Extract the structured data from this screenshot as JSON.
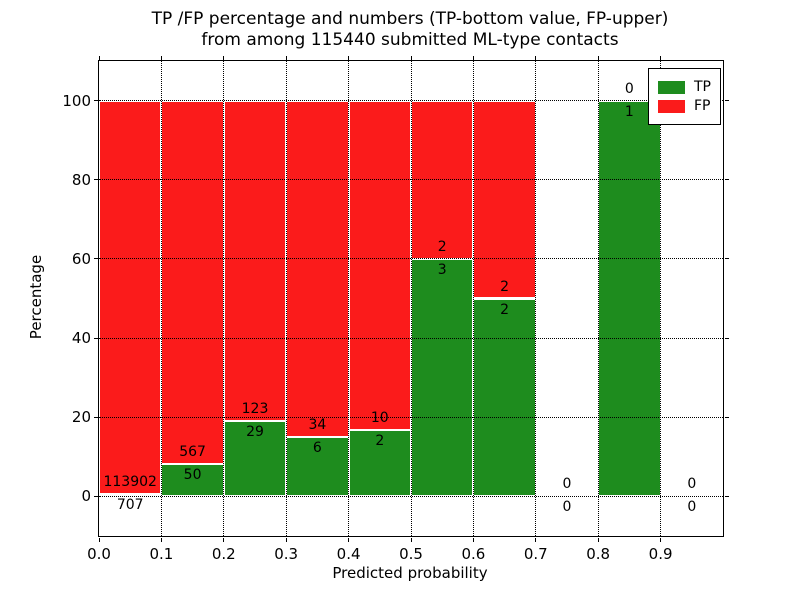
{
  "chart_data": {
    "type": "bar",
    "stacked": true,
    "title_line1": "TP /FP percentage and numbers (TP-bottom value, FP-upper)",
    "title_line2": "from among 115440 submitted ML-type contacts",
    "xlabel": "Predicted probability",
    "ylabel": "Percentage",
    "xlim": [
      0.0,
      1.0
    ],
    "ylim": [
      -10,
      110
    ],
    "grid": true,
    "legend_position": "upper right",
    "xtick_values": [
      0.0,
      0.1,
      0.2,
      0.3,
      0.4,
      0.5,
      0.6,
      0.7,
      0.8,
      0.9
    ],
    "xtick_labels": [
      "0.0",
      "0.1",
      "0.2",
      "0.3",
      "0.4",
      "0.5",
      "0.6",
      "0.7",
      "0.8",
      "0.9"
    ],
    "ytick_values": [
      0,
      20,
      40,
      60,
      80,
      100
    ],
    "ytick_labels": [
      "0",
      "20",
      "40",
      "60",
      "80",
      "100"
    ],
    "colors": {
      "tp": "#1e8c1e",
      "fp": "#fb1b1b"
    },
    "legend": [
      {
        "name": "TP",
        "label": "TP",
        "color": "#1e8c1e"
      },
      {
        "name": "FP",
        "label": "FP",
        "color": "#fb1b1b"
      }
    ],
    "bins": [
      {
        "start": 0.0,
        "end": 0.1,
        "tp_count": 707,
        "fp_count": 113902,
        "tp_pct": 0.62,
        "fp_pct": 99.38,
        "tp_label": "707",
        "fp_label": "113902"
      },
      {
        "start": 0.1,
        "end": 0.2,
        "tp_count": 50,
        "fp_count": 567,
        "tp_pct": 8.1,
        "fp_pct": 91.9,
        "tp_label": "50",
        "fp_label": "567"
      },
      {
        "start": 0.2,
        "end": 0.3,
        "tp_count": 29,
        "fp_count": 123,
        "tp_pct": 19.08,
        "fp_pct": 80.92,
        "tp_label": "29",
        "fp_label": "123"
      },
      {
        "start": 0.3,
        "end": 0.4,
        "tp_count": 6,
        "fp_count": 34,
        "tp_pct": 15.0,
        "fp_pct": 85.0,
        "tp_label": "6",
        "fp_label": "34"
      },
      {
        "start": 0.4,
        "end": 0.5,
        "tp_count": 2,
        "fp_count": 10,
        "tp_pct": 16.67,
        "fp_pct": 83.33,
        "tp_label": "2",
        "fp_label": "10"
      },
      {
        "start": 0.5,
        "end": 0.6,
        "tp_count": 3,
        "fp_count": 2,
        "tp_pct": 60.0,
        "fp_pct": 40.0,
        "tp_label": "3",
        "fp_label": "2"
      },
      {
        "start": 0.6,
        "end": 0.7,
        "tp_count": 2,
        "fp_count": 2,
        "tp_pct": 50.0,
        "fp_pct": 50.0,
        "tp_label": "2",
        "fp_label": "2"
      },
      {
        "start": 0.7,
        "end": 0.8,
        "tp_count": 0,
        "fp_count": 0,
        "tp_pct": 0.0,
        "fp_pct": 0.0,
        "tp_label": "0",
        "fp_label": "0"
      },
      {
        "start": 0.8,
        "end": 0.9,
        "tp_count": 1,
        "fp_count": 0,
        "tp_pct": 100.0,
        "fp_pct": 0.0,
        "tp_label": "1",
        "fp_label": "0"
      },
      {
        "start": 0.9,
        "end": 1.0,
        "tp_count": 0,
        "fp_count": 0,
        "tp_pct": 0.0,
        "fp_pct": 0.0,
        "tp_label": "0",
        "fp_label": "0"
      }
    ]
  }
}
